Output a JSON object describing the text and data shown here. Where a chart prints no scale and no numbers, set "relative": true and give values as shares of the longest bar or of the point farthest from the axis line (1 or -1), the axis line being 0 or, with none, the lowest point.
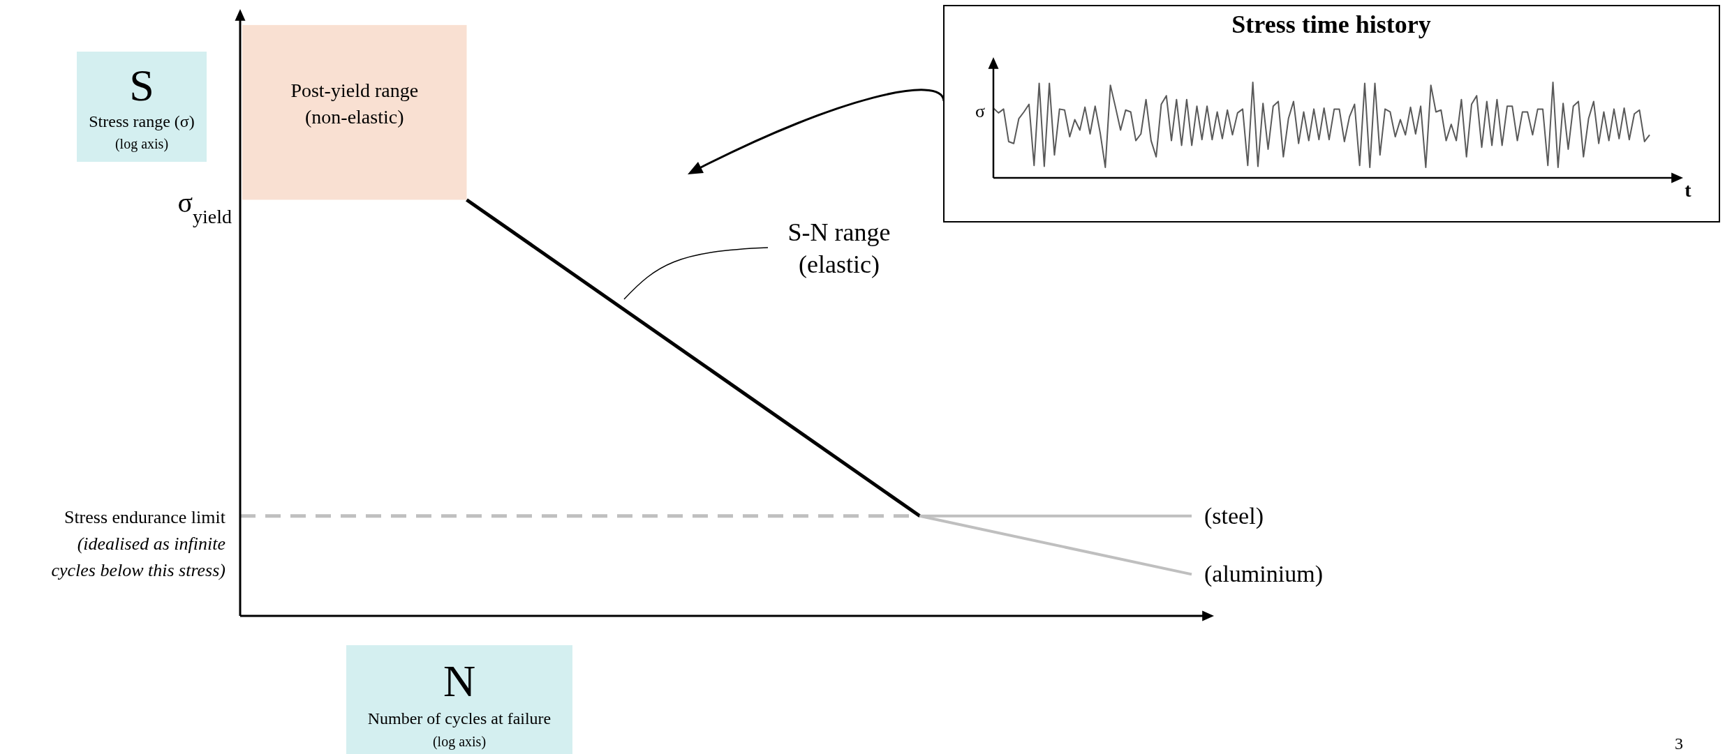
{
  "chart_data": [
    {
      "type": "line",
      "relative": true,
      "categories": [
        null,
        null,
        null,
        null,
        null,
        null,
        null,
        null,
        null,
        null,
        null,
        null,
        null,
        null,
        null,
        null,
        null,
        null,
        null,
        null,
        null,
        null
      ],
      "ylabel": "S\nStress range (σ)\n(log axis)",
      "xlabel": "N\nNumber of cycles at failure\n(log axis)",
      "series": [
        {
          "color": "#000000",
          "values": [
            null,
            null,
            null,
            null,
            null,
            1,
            null,
            null,
            null,
            null,
            null,
            null,
            null,
            null,
            null,
            0.24,
            null,
            null,
            null,
            null,
            null,
            null
          ]
        },
        {
          "name": "(steel)",
          "color": "#bfbfbf",
          "values": [
            null,
            null,
            null,
            null,
            null,
            null,
            null,
            null,
            null,
            null,
            null,
            null,
            null,
            null,
            null,
            0.24,
            null,
            null,
            null,
            null,
            null,
            0.24
          ]
        },
        {
          "name": "(aluminium)",
          "color": "#bfbfbf",
          "values": [
            null,
            null,
            null,
            null,
            null,
            null,
            null,
            null,
            null,
            null,
            null,
            null,
            null,
            null,
            null,
            0.24,
            null,
            null,
            null,
            null,
            null,
            0.1
          ]
        }
      ],
      "bands": [
        {
          "axis": "y",
          "from": 1,
          "to": 1.42,
          "label": "Post-yield range\n(non-elastic)",
          "color": "#f9e0d2"
        }
      ],
      "ref_lines": [
        {
          "axis": "y",
          "value": 0.24,
          "label": "Stress endurance limit\n(idealised as infinite\ncycles below this stress)",
          "color": "#bfbfbf",
          "line_style": "dashed"
        }
      ],
      "annotations": [
        "S-N range\n(elastic)",
        "σ$_{yield}$",
        "3"
      ]
    },
    {
      "type": "line",
      "relative": true,
      "title": "Stress time history",
      "xlabel": "t",
      "ylabel": "σ",
      "categories": [
        null,
        null,
        null,
        null,
        null,
        null,
        null,
        null,
        null,
        null,
        null,
        null,
        null,
        null,
        null,
        null,
        null,
        null,
        null,
        null,
        null,
        null,
        null,
        null,
        null,
        null,
        null,
        null,
        null,
        null,
        null,
        null,
        null,
        null,
        null,
        null,
        null,
        null,
        null,
        null,
        null,
        null,
        null,
        null,
        null,
        null,
        null,
        null,
        null,
        null,
        null,
        null,
        null,
        null,
        null,
        null,
        null,
        null,
        null,
        null,
        null,
        null,
        null,
        null,
        null,
        null,
        null,
        null,
        null,
        null,
        null,
        null,
        null,
        null,
        null,
        null,
        null,
        null,
        null,
        null,
        null,
        null,
        null,
        null,
        null,
        null,
        null,
        null,
        null,
        null,
        null,
        null,
        null,
        null,
        null,
        null,
        null,
        null,
        null,
        null,
        null,
        null,
        null,
        null,
        null,
        null,
        null,
        null,
        null,
        null,
        null,
        null,
        null,
        null,
        null,
        null,
        null,
        null,
        null,
        null,
        null,
        null,
        null,
        null,
        null,
        null,
        null,
        null,
        null,
        null
      ],
      "series": [
        {
          "color": "#595959",
          "values": [
            0.73,
            0.68,
            0.72,
            0.38,
            0.36,
            0.62,
            0.69,
            0.77,
            0.13,
            0.99,
            0.12,
            0.99,
            0.24,
            0.72,
            0.71,
            0.43,
            0.61,
            0.5,
            0.74,
            0.46,
            0.75,
            0.47,
            0.11,
            0.97,
            0.74,
            0.5,
            0.71,
            0.69,
            0.39,
            0.46,
            0.82,
            0.39,
            0.22,
            0.77,
            0.86,
            0.39,
            0.82,
            0.34,
            0.82,
            0.34,
            0.75,
            0.4,
            0.75,
            0.4,
            0.69,
            0.41,
            0.71,
            0.45,
            0.68,
            0.72,
            0.13,
            1.0,
            0.12,
            0.78,
            0.3,
            0.75,
            0.8,
            0.22,
            0.62,
            0.8,
            0.36,
            0.69,
            0.39,
            0.72,
            0.4,
            0.73,
            0.4,
            0.72,
            0.72,
            0.38,
            0.64,
            0.77,
            0.13,
            0.99,
            0.11,
            0.99,
            0.24,
            0.72,
            0.69,
            0.43,
            0.61,
            0.45,
            0.74,
            0.46,
            0.75,
            0.11,
            0.97,
            0.69,
            0.71,
            0.39,
            0.56,
            0.39,
            0.82,
            0.22,
            0.77,
            0.86,
            0.32,
            0.8,
            0.34,
            0.82,
            0.34,
            0.75,
            0.75,
            0.39,
            0.69,
            0.69,
            0.45,
            0.72,
            0.72,
            0.13,
            1.0,
            0.11,
            0.78,
            0.3,
            0.75,
            0.8,
            0.22,
            0.62,
            0.8,
            0.36,
            0.69,
            0.39,
            0.72,
            0.41,
            0.73,
            0.4,
            0.67,
            0.71,
            0.38,
            0.45
          ]
        }
      ]
    }
  ]
}
